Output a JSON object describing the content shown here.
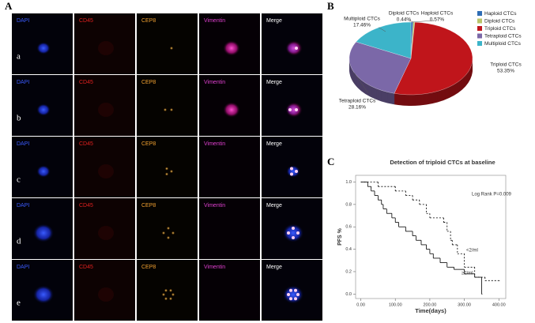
{
  "panel_labels": [
    "A",
    "B",
    "C"
  ],
  "image_grid": {
    "columns": [
      "DAPI",
      "CD45",
      "CEP8",
      "Vimentin",
      "Merge"
    ],
    "rows": [
      "a",
      "b",
      "c",
      "d",
      "e"
    ]
  },
  "chart_data": [
    {
      "type": "pie",
      "categories": [
        "Haploid CTCs",
        "Diploid CTCs",
        "Triploid CTCs",
        "Tetraploid CTCs",
        "Multiploid CTCs"
      ],
      "values": [
        0.57,
        0.44,
        53.35,
        28.16,
        17.46
      ],
      "value_labels": [
        "0.57%",
        "0.44%",
        "53.35%",
        "28.16%",
        "17.46%"
      ],
      "colors": [
        "#2f6db5",
        "#b9c46a",
        "#c0151b",
        "#7b68a8",
        "#3cb4c9"
      ]
    },
    {
      "type": "line",
      "title": "Detection of triploid CTCs at baseline",
      "x_label": "Time(days)",
      "y_label": "PFS %",
      "annotation": "Log Rank P=0.009",
      "series": [
        {
          "name": "<2/ml",
          "dash": "2,2",
          "color": "#000000",
          "x": [
            0,
            50,
            100,
            130,
            150,
            170,
            190,
            200,
            240,
            250,
            260,
            265,
            280,
            300,
            330,
            360,
            400
          ],
          "values": [
            1.0,
            0.96,
            0.92,
            0.88,
            0.84,
            0.8,
            0.72,
            0.68,
            0.64,
            0.56,
            0.48,
            0.44,
            0.36,
            0.24,
            0.15,
            0.12,
            0.12
          ]
        },
        {
          "name": "≥2/ml",
          "dash": "none",
          "color": "#000000",
          "x": [
            0,
            20,
            30,
            40,
            50,
            60,
            65,
            75,
            90,
            100,
            110,
            130,
            150,
            160,
            175,
            190,
            200,
            210,
            230,
            250,
            270,
            300,
            330,
            350
          ],
          "values": [
            1.0,
            0.96,
            0.92,
            0.88,
            0.84,
            0.8,
            0.76,
            0.72,
            0.68,
            0.64,
            0.6,
            0.56,
            0.52,
            0.48,
            0.44,
            0.4,
            0.36,
            0.32,
            0.28,
            0.24,
            0.22,
            0.18,
            0.15,
            0.0
          ]
        }
      ],
      "xlim": [
        -15,
        420
      ],
      "ylim": [
        -0.04,
        1.06
      ],
      "xticks": [
        {
          "value": 0,
          "label": "0.00"
        },
        {
          "value": 100,
          "label": "100.00"
        },
        {
          "value": 200,
          "label": "200.00"
        },
        {
          "value": 300,
          "label": "300.00"
        },
        {
          "value": 400,
          "label": "400.00"
        }
      ],
      "yticks": [
        {
          "value": 0,
          "label": "0.0"
        },
        {
          "value": 0.2,
          "label": "0.2"
        },
        {
          "value": 0.4,
          "label": "0.4"
        },
        {
          "value": 0.6,
          "label": "0.6"
        },
        {
          "value": 0.8,
          "label": "0.8"
        },
        {
          "value": 1.0,
          "label": "1.0"
        }
      ]
    }
  ]
}
